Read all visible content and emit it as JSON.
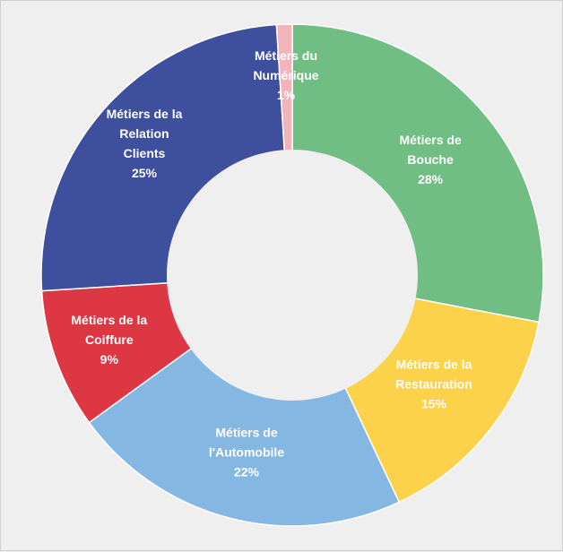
{
  "chart_data": {
    "type": "pie",
    "variant": "donut",
    "title": "",
    "legend": "none",
    "slices": [
      {
        "label_lines": [
          "Métiers de",
          "Bouche"
        ],
        "value": 28,
        "value_label": "28%",
        "color": "#71be84"
      },
      {
        "label_lines": [
          "Métiers de la",
          "Restauration"
        ],
        "value": 15,
        "value_label": "15%",
        "color": "#fdd24b"
      },
      {
        "label_lines": [
          "Métiers de",
          "l'Automobile"
        ],
        "value": 22,
        "value_label": "22%",
        "color": "#85b7e3"
      },
      {
        "label_lines": [
          "Métiers de la",
          "Coiffure"
        ],
        "value": 9,
        "value_label": "9%",
        "color": "#dc3742"
      },
      {
        "label_lines": [
          "Métiers de la",
          "Relation",
          "Clients"
        ],
        "value": 25,
        "value_label": "25%",
        "color": "#3e4f9e"
      },
      {
        "label_lines": [
          "Métiers du",
          "Numérique"
        ],
        "value": 1,
        "value_label": "1%",
        "color": "#f3b3ba"
      }
    ]
  }
}
